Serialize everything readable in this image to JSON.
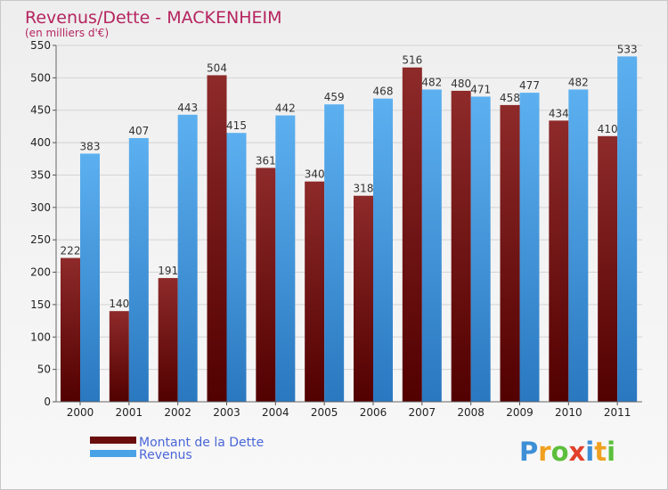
{
  "chart_data": {
    "type": "bar",
    "title": "Revenus/Dette - MACKENHEIM",
    "subtitle": "(en milliers d'€)",
    "categories": [
      "2000",
      "2001",
      "2002",
      "2003",
      "2004",
      "2005",
      "2006",
      "2007",
      "2008",
      "2009",
      "2010",
      "2011"
    ],
    "series": [
      {
        "name": "Montant de la Dette",
        "color": "#7a1a1a",
        "values": [
          222,
          140,
          191,
          504,
          361,
          340,
          318,
          516,
          480,
          458,
          434,
          410
        ]
      },
      {
        "name": "Revenus",
        "color": "#4aa2e6",
        "values": [
          383,
          407,
          443,
          415,
          442,
          459,
          468,
          482,
          471,
          477,
          482,
          533
        ]
      }
    ],
    "ylim": [
      0,
      550
    ],
    "yticks": [
      0,
      50,
      100,
      150,
      200,
      250,
      300,
      350,
      400,
      450,
      500,
      550
    ],
    "grid": true,
    "legend_position": "bottom-left"
  },
  "logo": {
    "letters": [
      {
        "char": "P",
        "color": "#3d8fd6"
      },
      {
        "char": "r",
        "color": "#f0a020"
      },
      {
        "char": "o",
        "color": "#5cbf3c"
      },
      {
        "char": "x",
        "color": "#e2402a"
      },
      {
        "char": "i",
        "color": "#3d8fd6"
      },
      {
        "char": "t",
        "color": "#f0a020"
      },
      {
        "char": "i",
        "color": "#5cbf3c"
      }
    ]
  }
}
